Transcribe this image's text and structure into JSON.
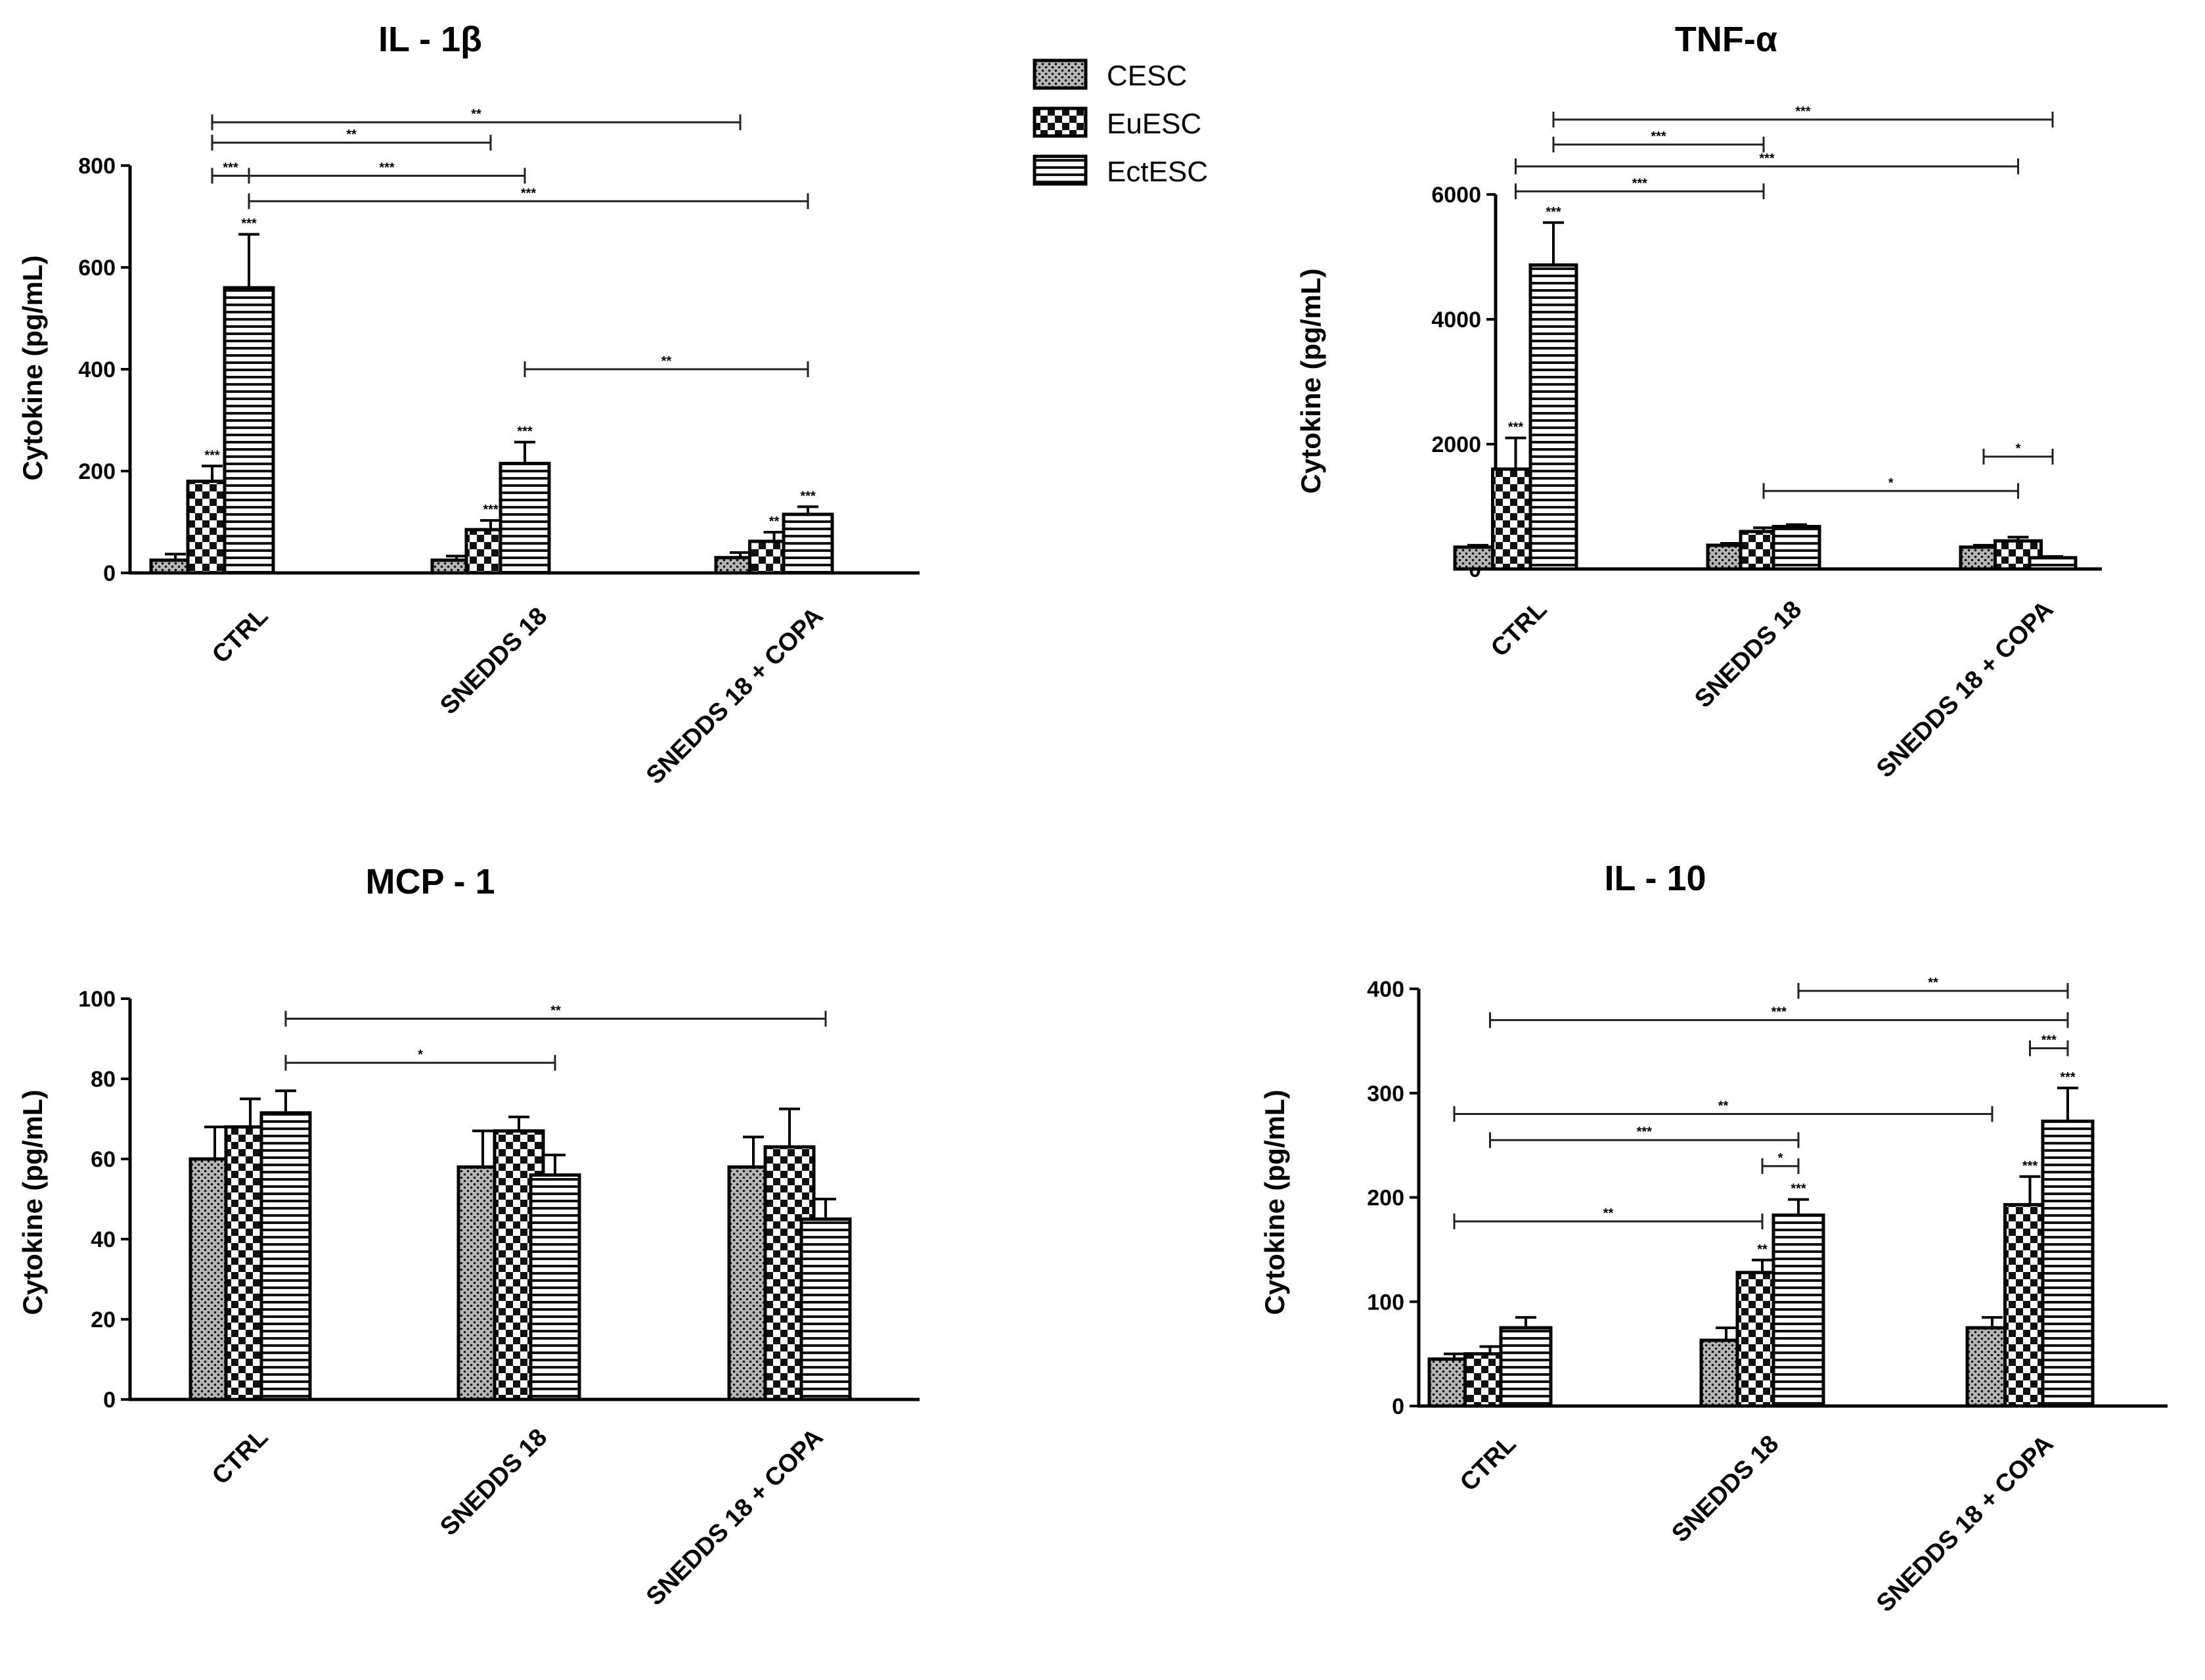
{
  "legend": [
    {
      "name": "CESC",
      "pattern": "dots"
    },
    {
      "name": "EuESC",
      "pattern": "checker"
    },
    {
      "name": "EctESC",
      "pattern": "stripes"
    }
  ],
  "chart_data": [
    {
      "type": "bar",
      "title": "IL - 1β",
      "ylabel": "Cytokine (pg/mL)",
      "xlabel": "",
      "ylim": [
        0,
        800
      ],
      "yticks": [
        0,
        200,
        400,
        600,
        800
      ],
      "tick_labels": [
        "0",
        "200",
        "400",
        "600",
        "800"
      ],
      "categories": [
        "CTRL",
        "SNEDDS 18",
        "SNEDDS 18 + COPA"
      ],
      "series": [
        {
          "name": "CESC",
          "values": [
            25,
            25,
            30
          ],
          "errors": [
            12,
            8,
            10
          ],
          "stars": [
            "",
            "",
            ""
          ]
        },
        {
          "name": "EuESC",
          "values": [
            180,
            85,
            62
          ],
          "errors": [
            30,
            18,
            18
          ],
          "stars": [
            "***",
            "***",
            "**"
          ]
        },
        {
          "name": "EctESC",
          "values": [
            560,
            215,
            115
          ],
          "errors": [
            105,
            42,
            15
          ],
          "stars": [
            "***",
            "***",
            "***"
          ]
        }
      ],
      "brackets": [
        {
          "from": [
            0,
            1
          ],
          "to": [
            2,
            0
          ],
          "y": 885,
          "label": "**"
        },
        {
          "from": [
            0,
            1
          ],
          "to": [
            1,
            1
          ],
          "y": 845,
          "label": "**"
        },
        {
          "from": [
            0,
            1
          ],
          "to": [
            0,
            2
          ],
          "y": 780,
          "label": "***"
        },
        {
          "from": [
            0,
            2
          ],
          "to": [
            1,
            2
          ],
          "y": 780,
          "label": "***"
        },
        {
          "from": [
            0,
            2
          ],
          "to": [
            2,
            2
          ],
          "y": 730,
          "label": "***"
        },
        {
          "from": [
            1,
            2
          ],
          "to": [
            2,
            2
          ],
          "y": 400,
          "label": "**"
        }
      ]
    },
    {
      "type": "bar",
      "title": "TNF-α",
      "ylabel": "Cytokine (pg/mL)",
      "xlabel": "",
      "ylim": [
        0,
        6000
      ],
      "yticks": [
        0,
        2000,
        4000,
        6000
      ],
      "tick_labels": [
        "0",
        "2000",
        "4000",
        "6000"
      ],
      "categories": [
        "CTRL",
        "SNEDDS 18",
        "SNEDDS 18 + COPA"
      ],
      "series": [
        {
          "name": "CESC",
          "values": [
            350,
            380,
            350
          ],
          "errors": [
            30,
            30,
            30
          ],
          "stars": [
            "",
            "",
            ""
          ]
        },
        {
          "name": "EuESC",
          "values": [
            1600,
            600,
            450
          ],
          "errors": [
            500,
            60,
            60
          ],
          "stars": [
            "***",
            "",
            ""
          ]
        },
        {
          "name": "EctESC",
          "values": [
            4870,
            680,
            180
          ],
          "errors": [
            680,
            30,
            20
          ],
          "stars": [
            "***",
            "",
            ""
          ]
        }
      ],
      "brackets": [
        {
          "from": [
            0,
            1
          ],
          "to": [
            1,
            1
          ],
          "y": 6050,
          "label": "***"
        },
        {
          "from": [
            0,
            1
          ],
          "to": [
            2,
            1
          ],
          "y": 6450,
          "label": "***"
        },
        {
          "from": [
            0,
            2
          ],
          "to": [
            1,
            1
          ],
          "y": 6800,
          "label": "***"
        },
        {
          "from": [
            0,
            2
          ],
          "to": [
            2,
            2
          ],
          "y": 7200,
          "label": "***"
        },
        {
          "from": [
            1,
            1
          ],
          "to": [
            2,
            1
          ],
          "y": 1250,
          "label": "*"
        },
        {
          "from": [
            2,
            0
          ],
          "to": [
            2,
            2
          ],
          "y": 1800,
          "label": "*"
        }
      ]
    },
    {
      "type": "bar",
      "title": "MCP - 1",
      "ylabel": "Cytokine (pg/mL)",
      "xlabel": "",
      "ylim": [
        0,
        100
      ],
      "yticks": [
        0,
        20,
        40,
        60,
        80,
        100
      ],
      "tick_labels": [
        "0",
        "20",
        "40",
        "60",
        "80",
        "100"
      ],
      "categories": [
        "CTRL",
        "SNEDDS 18",
        "SNEDDS 18 + COPA"
      ],
      "series": [
        {
          "name": "CESC",
          "values": [
            60,
            58,
            58
          ],
          "errors": [
            8,
            9,
            7.5
          ],
          "stars": [
            "",
            "",
            ""
          ]
        },
        {
          "name": "EuESC",
          "values": [
            68,
            67,
            63
          ],
          "errors": [
            7,
            3.5,
            9.5
          ],
          "stars": [
            "",
            "",
            ""
          ]
        },
        {
          "name": "EctESC",
          "values": [
            71.5,
            56,
            45
          ],
          "errors": [
            5.5,
            5,
            5
          ],
          "stars": [
            "",
            "",
            ""
          ]
        }
      ],
      "brackets": [
        {
          "from": [
            0,
            2
          ],
          "to": [
            2,
            2
          ],
          "y": 95,
          "label": "**"
        },
        {
          "from": [
            0,
            2
          ],
          "to": [
            1,
            2
          ],
          "y": 84,
          "label": "*"
        }
      ]
    },
    {
      "type": "bar",
      "title": "IL - 10",
      "ylabel": "Cytokine (pg/mL)",
      "xlabel": "",
      "ylim": [
        0,
        400
      ],
      "yticks": [
        0,
        100,
        200,
        300,
        400
      ],
      "tick_labels": [
        "0",
        "100",
        "200",
        "300",
        "400"
      ],
      "categories": [
        "CTRL",
        "SNEDDS 18",
        "SNEDDS 18 + COPA"
      ],
      "series": [
        {
          "name": "CESC",
          "values": [
            45,
            63,
            75
          ],
          "errors": [
            5,
            12,
            10
          ],
          "stars": [
            "",
            "",
            ""
          ]
        },
        {
          "name": "EuESC",
          "values": [
            50,
            128,
            193
          ],
          "errors": [
            7,
            12,
            27
          ],
          "stars": [
            "",
            "**",
            "***"
          ]
        },
        {
          "name": "EctESC",
          "values": [
            75,
            183,
            273
          ],
          "errors": [
            10,
            15,
            32
          ],
          "stars": [
            "",
            "***",
            "***"
          ]
        }
      ],
      "brackets": [
        {
          "from": [
            1,
            2
          ],
          "to": [
            2,
            2
          ],
          "y": 398,
          "label": "**"
        },
        {
          "from": [
            0,
            1
          ],
          "to": [
            2,
            2
          ],
          "y": 370,
          "label": "***"
        },
        {
          "from": [
            2,
            1
          ],
          "to": [
            2,
            2
          ],
          "y": 343,
          "label": "***"
        },
        {
          "from": [
            0,
            0
          ],
          "to": [
            2,
            0
          ],
          "y": 280,
          "label": "**"
        },
        {
          "from": [
            0,
            1
          ],
          "to": [
            1,
            2
          ],
          "y": 255,
          "label": "***"
        },
        {
          "from": [
            1,
            1
          ],
          "to": [
            1,
            2
          ],
          "y": 230,
          "label": "*"
        },
        {
          "from": [
            0,
            0
          ],
          "to": [
            1,
            1
          ],
          "y": 177,
          "label": "**"
        }
      ]
    }
  ]
}
